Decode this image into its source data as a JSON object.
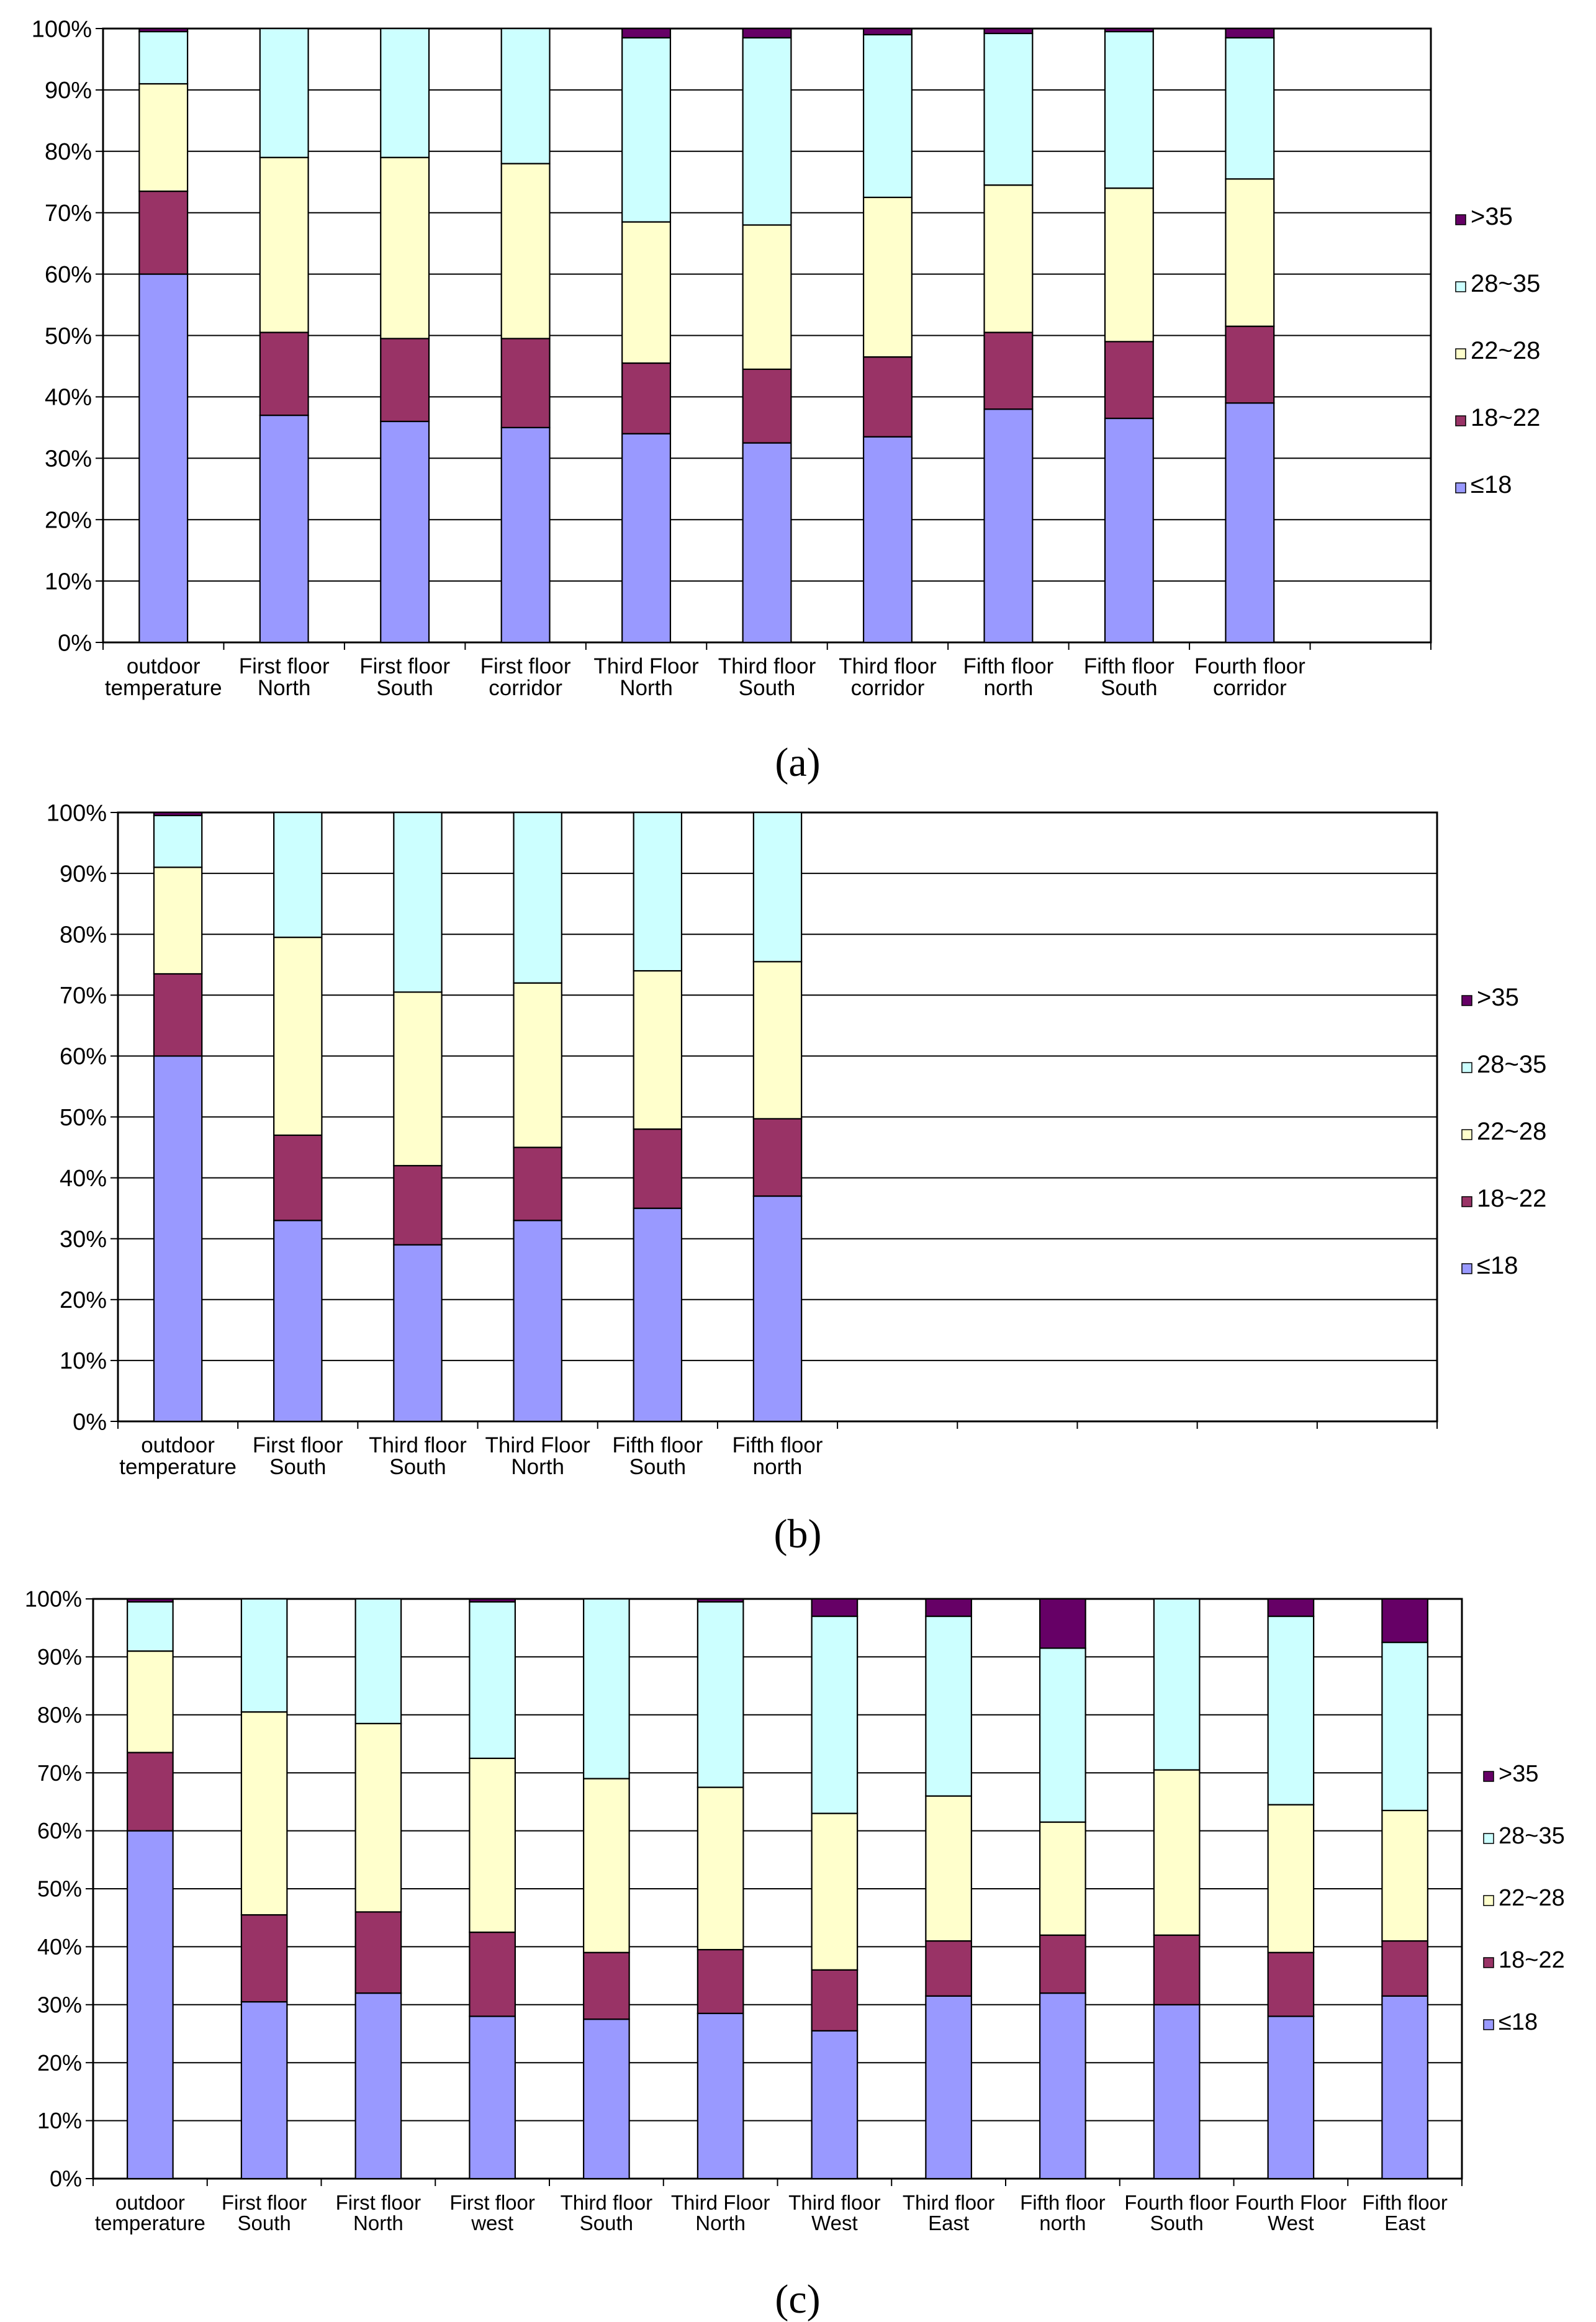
{
  "colors": {
    "le18": "#9999FF",
    "r18_22": "#993366",
    "r22_28": "#FFFFCC",
    "r28_35": "#CCFFFF",
    "gt35": "#660066",
    "axis": "#000000",
    "grid": "#000000"
  },
  "legend": [
    "≤18",
    "18~22",
    "22~28",
    "28~35",
    ">35"
  ],
  "chart_data": [
    {
      "type": "bar",
      "stacked": true,
      "caption": "(a)",
      "title": "",
      "xlabel": "",
      "ylabel": "",
      "ylim": [
        0,
        100
      ],
      "yticks": [
        "0%",
        "10%",
        "20%",
        "30%",
        "40%",
        "50%",
        "60%",
        "70%",
        "80%",
        "90%",
        "100%"
      ],
      "grid": true,
      "legend_position": "right",
      "categories": [
        [
          "outdoor",
          "temperature"
        ],
        [
          "First floor",
          "North"
        ],
        [
          "First floor",
          "South"
        ],
        [
          "First floor",
          "corridor"
        ],
        [
          "Third Floor",
          "North"
        ],
        [
          "Third floor",
          "South"
        ],
        [
          "Third floor",
          "corridor"
        ],
        [
          "Fifth floor",
          "north"
        ],
        [
          "Fifth floor",
          "South"
        ],
        [
          "Fourth floor",
          "corridor"
        ]
      ],
      "series": [
        {
          "name": "≤18",
          "values": [
            60,
            37,
            36,
            35,
            34,
            32.5,
            33.5,
            38,
            36.5,
            39
          ]
        },
        {
          "name": "18~22",
          "values": [
            13.5,
            13.5,
            13.5,
            14.5,
            11.5,
            12,
            13,
            12.5,
            12.5,
            12.5
          ]
        },
        {
          "name": "22~28",
          "values": [
            17.5,
            28.5,
            29.5,
            28.5,
            23,
            23.5,
            26,
            24,
            25,
            24
          ]
        },
        {
          "name": "28~35",
          "values": [
            8.5,
            21,
            21,
            22,
            30,
            30.5,
            26.5,
            24.7,
            25.5,
            23
          ]
        },
        {
          "name": ">35",
          "values": [
            0.5,
            0,
            0,
            0,
            1.5,
            1.5,
            1,
            0.8,
            0.5,
            1.5
          ]
        }
      ]
    },
    {
      "type": "bar",
      "stacked": true,
      "caption": "(b)",
      "title": "",
      "xlabel": "",
      "ylabel": "",
      "ylim": [
        0,
        100
      ],
      "yticks": [
        "0%",
        "10%",
        "20%",
        "30%",
        "40%",
        "50%",
        "60%",
        "70%",
        "80%",
        "90%",
        "100%"
      ],
      "grid": true,
      "legend_position": "right",
      "slots": 11,
      "categories": [
        [
          "outdoor",
          "temperature"
        ],
        [
          "First floor",
          "South"
        ],
        [
          "Third floor",
          "South"
        ],
        [
          "Third Floor",
          "North"
        ],
        [
          "Fifth floor",
          "South"
        ],
        [
          "Fifth floor",
          "north"
        ]
      ],
      "series": [
        {
          "name": "≤18",
          "values": [
            60,
            33,
            29,
            33,
            35,
            37
          ]
        },
        {
          "name": "18~22",
          "values": [
            13.5,
            14,
            13,
            12,
            13,
            12.7
          ]
        },
        {
          "name": "22~28",
          "values": [
            17.5,
            32.5,
            28.5,
            27,
            26,
            25.8
          ]
        },
        {
          "name": "28~35",
          "values": [
            8.5,
            20.5,
            29.5,
            28,
            26,
            24.5
          ]
        },
        {
          "name": ">35",
          "values": [
            0.5,
            0,
            0,
            0,
            0,
            0
          ]
        }
      ]
    },
    {
      "type": "bar",
      "stacked": true,
      "caption": "(c)",
      "title": "",
      "xlabel": "",
      "ylabel": "",
      "ylim": [
        0,
        100
      ],
      "yticks": [
        "0%",
        "10%",
        "20%",
        "30%",
        "40%",
        "50%",
        "60%",
        "70%",
        "80%",
        "90%",
        "100%"
      ],
      "grid": true,
      "legend_position": "right",
      "categories": [
        [
          "outdoor",
          "temperature"
        ],
        [
          "First floor",
          "South"
        ],
        [
          "First floor",
          "North"
        ],
        [
          "First floor",
          "west"
        ],
        [
          "Third floor",
          "South"
        ],
        [
          "Third Floor",
          "North"
        ],
        [
          "Third floor",
          "West"
        ],
        [
          "Third floor",
          "East"
        ],
        [
          "Fifth floor",
          "north"
        ],
        [
          "Fourth floor",
          "South"
        ],
        [
          "Fourth Floor",
          "West"
        ],
        [
          "Fifth floor",
          "East"
        ]
      ],
      "series": [
        {
          "name": "≤18",
          "values": [
            60,
            30.5,
            32,
            28,
            27.5,
            28.5,
            25.5,
            31.5,
            32,
            30,
            28,
            31.5
          ]
        },
        {
          "name": "18~22",
          "values": [
            13.5,
            15,
            14,
            14.5,
            11.5,
            11,
            10.5,
            9.5,
            10,
            12,
            11,
            9.5
          ]
        },
        {
          "name": "22~28",
          "values": [
            17.5,
            35,
            32.5,
            30,
            30,
            28,
            27,
            25,
            19.5,
            28.5,
            25.5,
            22.5
          ]
        },
        {
          "name": "28~35",
          "values": [
            8.5,
            19.5,
            21.5,
            27,
            31,
            32,
            34,
            31,
            30,
            29.5,
            32.5,
            29
          ]
        },
        {
          "name": ">35",
          "values": [
            0.5,
            0,
            0,
            0.5,
            0,
            0.5,
            3,
            3,
            8.5,
            0,
            3,
            7.5
          ]
        }
      ]
    }
  ]
}
